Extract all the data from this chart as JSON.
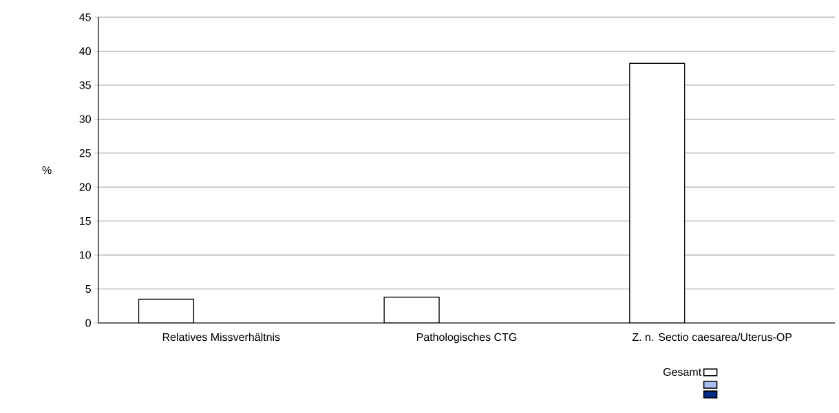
{
  "chart_data": {
    "type": "bar",
    "ylabel": "%",
    "categories": [
      "Relatives Missverhältnis",
      "Pathologisches CTG",
      "Z. n. Sectio caesarea/Uterus-OP"
    ],
    "series": [
      {
        "name": "Gesamt",
        "color": "#ffffff",
        "values": [
          3.5,
          3.8,
          38.2
        ]
      },
      {
        "color": "#a9c0f5",
        "values": [
          null,
          null,
          null
        ]
      },
      {
        "color": "#002a86",
        "values": [
          null,
          null,
          null
        ]
      }
    ],
    "ylim": [
      0,
      45
    ],
    "yticks": [
      0,
      5,
      10,
      15,
      20,
      25,
      30,
      35,
      40,
      45
    ],
    "grid": "y",
    "legend": "bottom right"
  }
}
